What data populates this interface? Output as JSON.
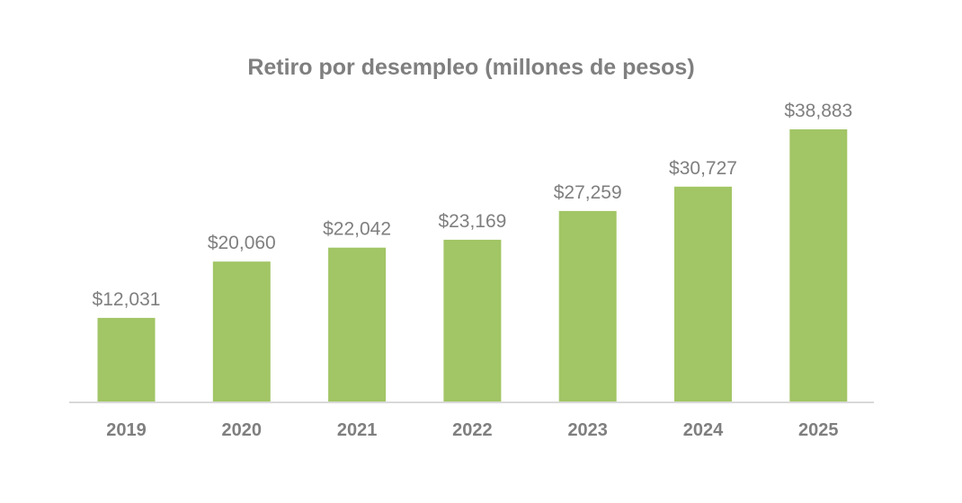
{
  "chart_data": {
    "type": "bar",
    "title": "Retiro por desempleo (millones de pesos)",
    "categories": [
      "2019",
      "2020",
      "2021",
      "2022",
      "2023",
      "2024",
      "2025"
    ],
    "values": [
      12031,
      20060,
      22042,
      23169,
      27259,
      30727,
      38883
    ],
    "data_labels": [
      "$12,031",
      "$20,060",
      "$22,042",
      "$23,169",
      "$27,259",
      "$30,727",
      "$38,883"
    ],
    "xlabel": "",
    "ylabel": "",
    "ylim": [
      0,
      38883
    ],
    "grid": false,
    "legend": "none"
  },
  "colors": {
    "bar": "#a2c565",
    "title": "#7f7f7f",
    "data_label": "#7f7f7f",
    "tick_label": "#7f7f7f",
    "axis_line": "#d9d9d9",
    "background": "#ffffff"
  }
}
